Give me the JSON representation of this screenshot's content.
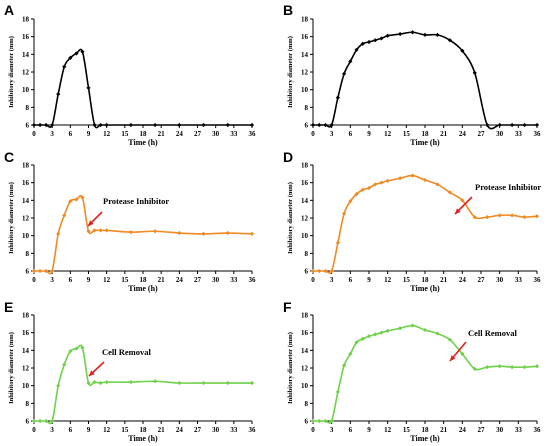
{
  "figure": {
    "panels": [
      {
        "letter": "A",
        "annotation": ""
      },
      {
        "letter": "B",
        "annotation": ""
      },
      {
        "letter": "C",
        "annotation": "Protease Inhibitor"
      },
      {
        "letter": "D",
        "annotation": "Protease Inhibitor"
      },
      {
        "letter": "E",
        "annotation": "Cell Removal"
      },
      {
        "letter": "F",
        "annotation": "Cell Removal"
      }
    ]
  },
  "chart_data": [
    {
      "type": "line",
      "panel": "A",
      "xlabel": "Time (h)",
      "ylabel": "Inhibitory diameter (mm)",
      "xlim": [
        0,
        36
      ],
      "ylim": [
        6,
        18
      ],
      "xticks": [
        0,
        3,
        6,
        9,
        12,
        15,
        18,
        21,
        24,
        27,
        30,
        33,
        36
      ],
      "yticks": [
        6,
        8,
        10,
        12,
        14,
        16,
        18
      ],
      "color": "#000000",
      "annotation": "",
      "series": [
        {
          "x": [
            0,
            1,
            2,
            3,
            4,
            5,
            6,
            7,
            8,
            9,
            10,
            11,
            12,
            16,
            20,
            24,
            28,
            32,
            36
          ],
          "y": [
            6,
            6,
            6,
            6,
            9.5,
            12.6,
            13.6,
            14.1,
            14.3,
            10.2,
            6,
            6,
            6,
            6,
            6,
            6,
            6,
            6,
            6
          ]
        }
      ]
    },
    {
      "type": "line",
      "panel": "B",
      "xlabel": "Time (h)",
      "ylabel": "Inhibitory diameter (mm)",
      "xlim": [
        0,
        36
      ],
      "ylim": [
        6,
        18
      ],
      "xticks": [
        0,
        3,
        6,
        9,
        12,
        15,
        18,
        21,
        24,
        27,
        30,
        33,
        36
      ],
      "yticks": [
        6,
        8,
        10,
        12,
        14,
        16,
        18
      ],
      "color": "#000000",
      "annotation": "",
      "series": [
        {
          "x": [
            0,
            1,
            2,
            3,
            4,
            5,
            6,
            7,
            8,
            9,
            10,
            11,
            12,
            14,
            16,
            18,
            20,
            22,
            24,
            26,
            28,
            30,
            32,
            34,
            36
          ],
          "y": [
            6,
            6,
            6,
            6,
            9.1,
            11.8,
            13.2,
            14.5,
            15.2,
            15.4,
            15.6,
            15.8,
            16.1,
            16.3,
            16.5,
            16.2,
            16.2,
            15.6,
            14.4,
            11.9,
            6,
            6,
            6,
            6,
            6
          ]
        }
      ]
    },
    {
      "type": "line",
      "panel": "C",
      "xlabel": "Time (h)",
      "ylabel": "Inhibitory diameter (mm)",
      "xlim": [
        0,
        36
      ],
      "ylim": [
        6,
        18
      ],
      "xticks": [
        0,
        3,
        6,
        9,
        12,
        15,
        18,
        21,
        24,
        27,
        30,
        33,
        36
      ],
      "yticks": [
        6,
        8,
        10,
        12,
        14,
        16,
        18
      ],
      "color": "#f08a24",
      "annotation": "Protease Inhibitor",
      "series": [
        {
          "x": [
            0,
            1,
            2,
            3,
            4,
            5,
            6,
            7,
            8,
            9,
            10,
            11,
            12,
            16,
            20,
            24,
            28,
            32,
            36
          ],
          "y": [
            6,
            6,
            6,
            6,
            10.2,
            12.3,
            13.9,
            14.1,
            14.3,
            10.5,
            10.6,
            10.6,
            10.6,
            10.4,
            10.5,
            10.3,
            10.2,
            10.3,
            10.2
          ]
        }
      ]
    },
    {
      "type": "line",
      "panel": "D",
      "xlabel": "Time (h)",
      "ylabel": "Inhibitory diameter (mm)",
      "xlim": [
        0,
        36
      ],
      "ylim": [
        6,
        18
      ],
      "xticks": [
        0,
        3,
        6,
        9,
        12,
        15,
        18,
        21,
        24,
        27,
        30,
        33,
        36
      ],
      "yticks": [
        6,
        8,
        10,
        12,
        14,
        16,
        18
      ],
      "color": "#f08a24",
      "annotation": "Protease Inhibitor",
      "series": [
        {
          "x": [
            0,
            1,
            2,
            3,
            4,
            5,
            6,
            7,
            8,
            9,
            10,
            11,
            12,
            14,
            16,
            18,
            20,
            22,
            24,
            26,
            28,
            30,
            32,
            34,
            36
          ],
          "y": [
            6,
            6,
            6,
            6,
            9.2,
            12.5,
            13.9,
            14.7,
            15.2,
            15.4,
            15.8,
            16.0,
            16.2,
            16.5,
            16.8,
            16.3,
            15.8,
            14.9,
            14.0,
            12.1,
            12.1,
            12.3,
            12.3,
            12.1,
            12.2
          ]
        }
      ]
    },
    {
      "type": "line",
      "panel": "E",
      "xlabel": "Time (h)",
      "ylabel": "Inhibitory diameter (mm)",
      "xlim": [
        0,
        36
      ],
      "ylim": [
        6,
        18
      ],
      "xticks": [
        0,
        3,
        6,
        9,
        12,
        15,
        18,
        21,
        24,
        27,
        30,
        33,
        36
      ],
      "yticks": [
        6,
        8,
        10,
        12,
        14,
        16,
        18
      ],
      "color": "#6fd14a",
      "annotation": "Cell Removal",
      "series": [
        {
          "x": [
            0,
            1,
            2,
            3,
            4,
            5,
            6,
            7,
            8,
            9,
            10,
            11,
            12,
            16,
            20,
            24,
            28,
            32,
            36
          ],
          "y": [
            6,
            6,
            6,
            6,
            10.0,
            12.4,
            13.9,
            14.2,
            14.3,
            10.3,
            10.4,
            10.3,
            10.4,
            10.4,
            10.5,
            10.3,
            10.3,
            10.3,
            10.3
          ]
        }
      ]
    },
    {
      "type": "line",
      "panel": "F",
      "xlabel": "Time (h)",
      "ylabel": "Inhibitory diameter (mm)",
      "xlim": [
        0,
        36
      ],
      "ylim": [
        6,
        18
      ],
      "xticks": [
        0,
        3,
        6,
        9,
        12,
        15,
        18,
        21,
        24,
        27,
        30,
        33,
        36
      ],
      "yticks": [
        6,
        8,
        10,
        12,
        14,
        16,
        18
      ],
      "color": "#6fd14a",
      "annotation": "Cell Removal",
      "series": [
        {
          "x": [
            0,
            1,
            2,
            3,
            4,
            5,
            6,
            7,
            8,
            9,
            10,
            11,
            12,
            14,
            16,
            18,
            20,
            22,
            24,
            26,
            28,
            30,
            32,
            34,
            36
          ],
          "y": [
            6,
            6,
            6,
            6,
            9.3,
            12.3,
            13.6,
            14.9,
            15.3,
            15.6,
            15.8,
            16.0,
            16.2,
            16.5,
            16.8,
            16.3,
            15.9,
            15.2,
            13.6,
            11.9,
            12.1,
            12.2,
            12.1,
            12.1,
            12.2
          ]
        }
      ]
    }
  ]
}
